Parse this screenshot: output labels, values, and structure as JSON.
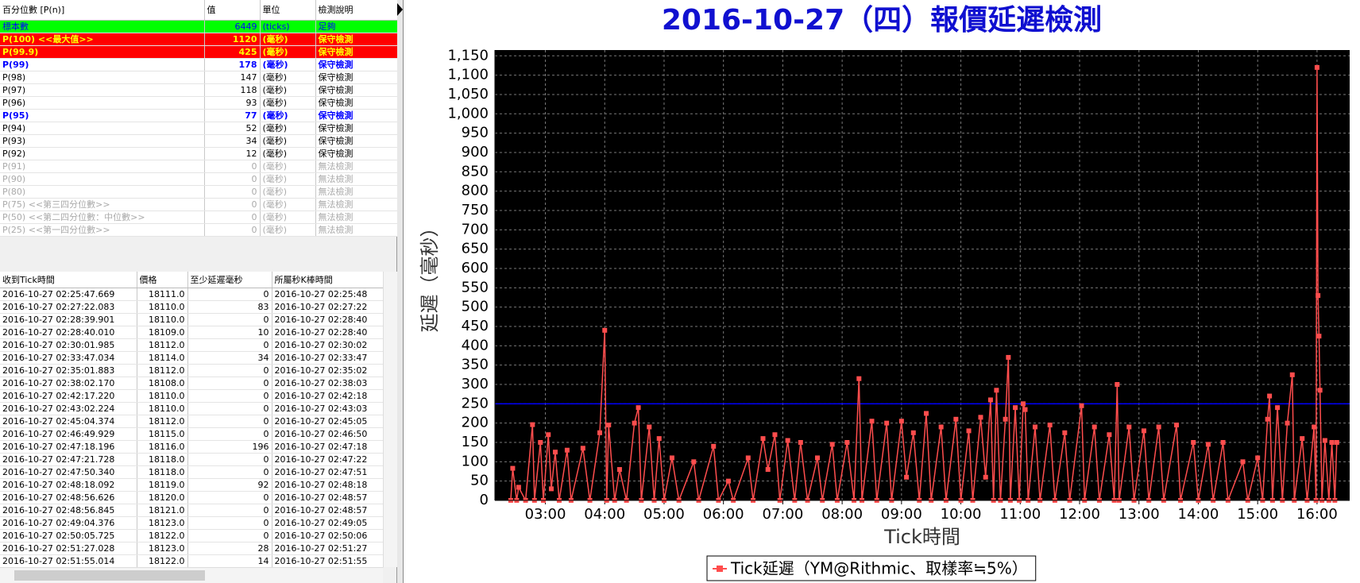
{
  "percentile_table": {
    "columns": [
      "百分位數 [P(n)]",
      "值",
      "單位",
      "檢測說明"
    ],
    "rows": [
      [
        "標本數",
        6449,
        "(ticks)",
        "足夠"
      ],
      [
        "P(100) <<最大值>>",
        1120,
        "(毫秒)",
        "保守檢測"
      ],
      [
        "P(99.9)",
        425,
        "(毫秒)",
        "保守檢測"
      ],
      [
        "P(99)",
        178,
        "(毫秒)",
        "保守檢測"
      ],
      [
        "P(98)",
        147,
        "(毫秒)",
        "保守檢測"
      ],
      [
        "P(97)",
        118,
        "(毫秒)",
        "保守檢測"
      ],
      [
        "P(96)",
        93,
        "(毫秒)",
        "保守檢測"
      ],
      [
        "P(95)",
        77,
        "(毫秒)",
        "保守檢測"
      ],
      [
        "P(94)",
        52,
        "(毫秒)",
        "保守檢測"
      ],
      [
        "P(93)",
        34,
        "(毫秒)",
        "保守檢測"
      ],
      [
        "P(92)",
        12,
        "(毫秒)",
        "保守檢測"
      ],
      [
        "P(91)",
        0,
        "(毫秒)",
        "無法檢測"
      ],
      [
        "P(90)",
        0,
        "(毫秒)",
        "無法檢測"
      ],
      [
        "P(80)",
        0,
        "(毫秒)",
        "無法檢測"
      ],
      [
        "P(75) <<第三四分位數>>",
        0,
        "(毫秒)",
        "無法檢測"
      ],
      [
        "P(50) <<第二四分位數：中位數>>",
        0,
        "(毫秒)",
        "無法檢測"
      ],
      [
        "P(25) <<第一四分位數>>",
        0,
        "(毫秒)",
        "無法檢測"
      ]
    ]
  },
  "tick_table": {
    "columns": [
      "收到Tick時間",
      "價格",
      "至少延遲毫秒",
      "所屬秒K棒時間"
    ],
    "rows": [
      [
        "2016-10-27 02:25:47.669",
        "18111.0",
        0,
        "2016-10-27 02:25:48"
      ],
      [
        "2016-10-27 02:27:22.083",
        "18110.0",
        83,
        "2016-10-27 02:27:22"
      ],
      [
        "2016-10-27 02:28:39.901",
        "18110.0",
        0,
        "2016-10-27 02:28:40"
      ],
      [
        "2016-10-27 02:28:40.010",
        "18109.0",
        10,
        "2016-10-27 02:28:40"
      ],
      [
        "2016-10-27 02:30:01.985",
        "18112.0",
        0,
        "2016-10-27 02:30:02"
      ],
      [
        "2016-10-27 02:33:47.034",
        "18114.0",
        34,
        "2016-10-27 02:33:47"
      ],
      [
        "2016-10-27 02:35:01.883",
        "18112.0",
        0,
        "2016-10-27 02:35:02"
      ],
      [
        "2016-10-27 02:38:02.170",
        "18108.0",
        0,
        "2016-10-27 02:38:03"
      ],
      [
        "2016-10-27 02:42:17.220",
        "18110.0",
        0,
        "2016-10-27 02:42:18"
      ],
      [
        "2016-10-27 02:43:02.224",
        "18110.0",
        0,
        "2016-10-27 02:43:03"
      ],
      [
        "2016-10-27 02:45:04.374",
        "18112.0",
        0,
        "2016-10-27 02:45:05"
      ],
      [
        "2016-10-27 02:46:49.929",
        "18115.0",
        0,
        "2016-10-27 02:46:50"
      ],
      [
        "2016-10-27 02:47:18.196",
        "18116.0",
        196,
        "2016-10-27 02:47:18"
      ],
      [
        "2016-10-27 02:47:21.728",
        "18118.0",
        0,
        "2016-10-27 02:47:22"
      ],
      [
        "2016-10-27 02:47:50.340",
        "18118.0",
        0,
        "2016-10-27 02:47:51"
      ],
      [
        "2016-10-27 02:48:18.092",
        "18119.0",
        92,
        "2016-10-27 02:48:18"
      ],
      [
        "2016-10-27 02:48:56.626",
        "18120.0",
        0,
        "2016-10-27 02:48:57"
      ],
      [
        "2016-10-27 02:48:56.845",
        "18121.0",
        0,
        "2016-10-27 02:48:57"
      ],
      [
        "2016-10-27 02:49:04.376",
        "18123.0",
        0,
        "2016-10-27 02:49:05"
      ],
      [
        "2016-10-27 02:50:05.725",
        "18122.0",
        0,
        "2016-10-27 02:50:06"
      ],
      [
        "2016-10-27 02:51:27.028",
        "18123.0",
        28,
        "2016-10-27 02:51:27"
      ],
      [
        "2016-10-27 02:51:55.014",
        "18122.0",
        14,
        "2016-10-27 02:51:55"
      ]
    ]
  },
  "chart_data": {
    "type": "line",
    "title": "2016-10-27（四）報價延遲檢測",
    "x_label": "Tick時間",
    "y_label": "延遲（毫秒）",
    "x": [
      "02:25",
      "02:27",
      "02:31",
      "02:33",
      "02:40",
      "02:47",
      "02:49",
      "02:55",
      "02:58",
      "03:03",
      "03:06",
      "03:10",
      "03:14",
      "03:22",
      "03:26",
      "03:38",
      "03:45",
      "03:55",
      "04:00",
      "04:02",
      "04:04",
      "04:10",
      "04:15",
      "04:22",
      "04:30",
      "04:34",
      "04:37",
      "04:45",
      "04:50",
      "04:55",
      "05:00",
      "05:08",
      "05:15",
      "05:30",
      "05:35",
      "05:50",
      "05:55",
      "06:05",
      "06:10",
      "06:25",
      "06:30",
      "06:40",
      "06:45",
      "06:52",
      "06:57",
      "07:05",
      "07:12",
      "07:18",
      "07:25",
      "07:35",
      "07:40",
      "07:50",
      "07:55",
      "08:05",
      "08:12",
      "08:17",
      "08:20",
      "08:30",
      "08:35",
      "08:45",
      "08:50",
      "09:00",
      "09:05",
      "09:12",
      "09:18",
      "09:25",
      "09:30",
      "09:40",
      "09:45",
      "09:55",
      "10:00",
      "10:08",
      "10:12",
      "10:20",
      "10:25",
      "10:30",
      "10:33",
      "10:36",
      "10:40",
      "10:45",
      "10:48",
      "10:50",
      "10:55",
      "10:59",
      "11:03",
      "11:05",
      "11:08",
      "11:15",
      "11:20",
      "11:30",
      "11:35",
      "11:45",
      "11:50",
      "12:02",
      "12:05",
      "12:15",
      "12:20",
      "12:30",
      "12:35",
      "12:38",
      "12:40",
      "12:50",
      "12:55",
      "13:05",
      "13:10",
      "13:20",
      "13:25",
      "13:38",
      "13:42",
      "13:55",
      "14:00",
      "14:10",
      "14:15",
      "14:25",
      "14:30",
      "14:45",
      "14:50",
      "15:00",
      "15:05",
      "15:10",
      "15:12",
      "15:15",
      "15:20",
      "15:25",
      "15:30",
      "15:35",
      "15:37",
      "15:45",
      "15:50",
      "15:57",
      "15:59",
      "16:00",
      "16:01",
      "16:02",
      "16:03",
      "16:05",
      "16:08",
      "16:12",
      "16:15",
      "16:18",
      "16:20"
    ],
    "series": [
      {
        "name": "Tick延遲（YM@Rithmic、取樣率≒5%）",
        "color": "#ff4d4d",
        "values": [
          0,
          83,
          0,
          34,
          0,
          196,
          0,
          150,
          0,
          170,
          30,
          125,
          0,
          130,
          0,
          135,
          0,
          175,
          440,
          0,
          195,
          0,
          80,
          0,
          200,
          240,
          0,
          190,
          0,
          160,
          0,
          110,
          0,
          100,
          0,
          140,
          0,
          50,
          0,
          110,
          0,
          160,
          80,
          170,
          0,
          155,
          0,
          150,
          0,
          110,
          0,
          145,
          0,
          150,
          0,
          315,
          0,
          205,
          0,
          200,
          0,
          205,
          60,
          175,
          0,
          225,
          0,
          190,
          0,
          210,
          0,
          180,
          0,
          215,
          60,
          260,
          0,
          285,
          0,
          210,
          370,
          0,
          240,
          0,
          250,
          235,
          0,
          190,
          0,
          195,
          0,
          175,
          0,
          245,
          0,
          190,
          0,
          170,
          0,
          300,
          0,
          190,
          0,
          180,
          0,
          190,
          0,
          195,
          0,
          150,
          0,
          145,
          0,
          150,
          0,
          100,
          0,
          110,
          0,
          210,
          270,
          0,
          240,
          0,
          200,
          325,
          0,
          160,
          0,
          190,
          0,
          1120,
          530,
          425,
          285,
          0,
          155,
          0,
          150,
          0,
          150
        ]
      }
    ],
    "xlim": [
      "02:09",
      "16:33"
    ],
    "xticks": [
      "03:00",
      "04:00",
      "05:00",
      "06:00",
      "07:00",
      "08:00",
      "09:00",
      "10:00",
      "11:00",
      "12:00",
      "13:00",
      "14:00",
      "15:00",
      "16:00"
    ],
    "ylim": [
      0,
      1165
    ],
    "yticks": [
      0,
      50,
      100,
      150,
      200,
      250,
      300,
      350,
      400,
      450,
      500,
      550,
      600,
      650,
      700,
      750,
      800,
      850,
      900,
      950,
      {
        "value": 1000,
        "label": "1,000"
      },
      {
        "value": 1050,
        "label": "1,050"
      },
      {
        "value": 1100,
        "label": "1,100"
      },
      {
        "value": 1150,
        "label": "1,150"
      }
    ],
    "grid": true,
    "plot_background": "#000000",
    "title_color": "#1010d0",
    "reference_line": {
      "value": 250,
      "color": "#0000ff"
    },
    "legend": "bottom"
  }
}
